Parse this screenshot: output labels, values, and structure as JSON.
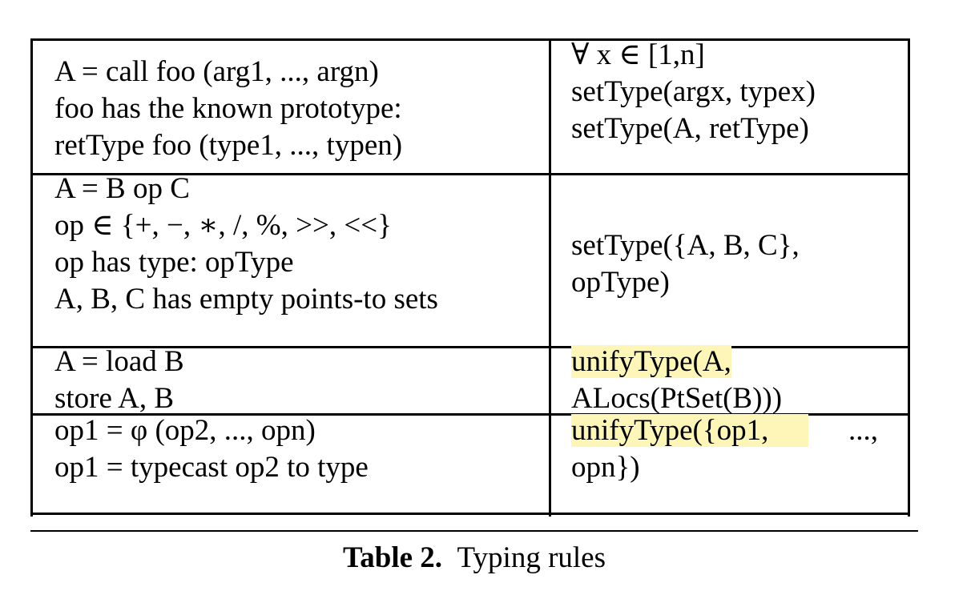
{
  "table": {
    "rows": [
      {
        "left": [
          "A = call foo (arg1, ..., argn)",
          "foo has the known prototype:",
          "retType foo (type1, ..., typen)"
        ],
        "right": [
          "∀ x ∈ [1,n]",
          "setType(argx, typex)",
          "setType(A, retType)"
        ]
      },
      {
        "left": [
          "A = B op C",
          "op ∈ {+, −, ∗, /, %, >>, <<}",
          "op has type: opType",
          "A, B, C has empty points-to sets"
        ],
        "right": [
          "setType({A, B, C},",
          "opType)"
        ]
      },
      {
        "left": [
          "A = load B",
          "store A, B"
        ],
        "right": [
          "unifyType(A,",
          "ALocs(PtSet(B)))"
        ]
      },
      {
        "left": [
          "op1 = φ (op2, ..., opn)",
          "op1 = typecast op2 to type"
        ],
        "right": [
          "unifyType({op1,",
          "...,",
          "opn})"
        ]
      }
    ]
  },
  "caption": {
    "label": "Table 2.",
    "text": "Typing rules"
  },
  "highlight_color": "#fdf6b8"
}
